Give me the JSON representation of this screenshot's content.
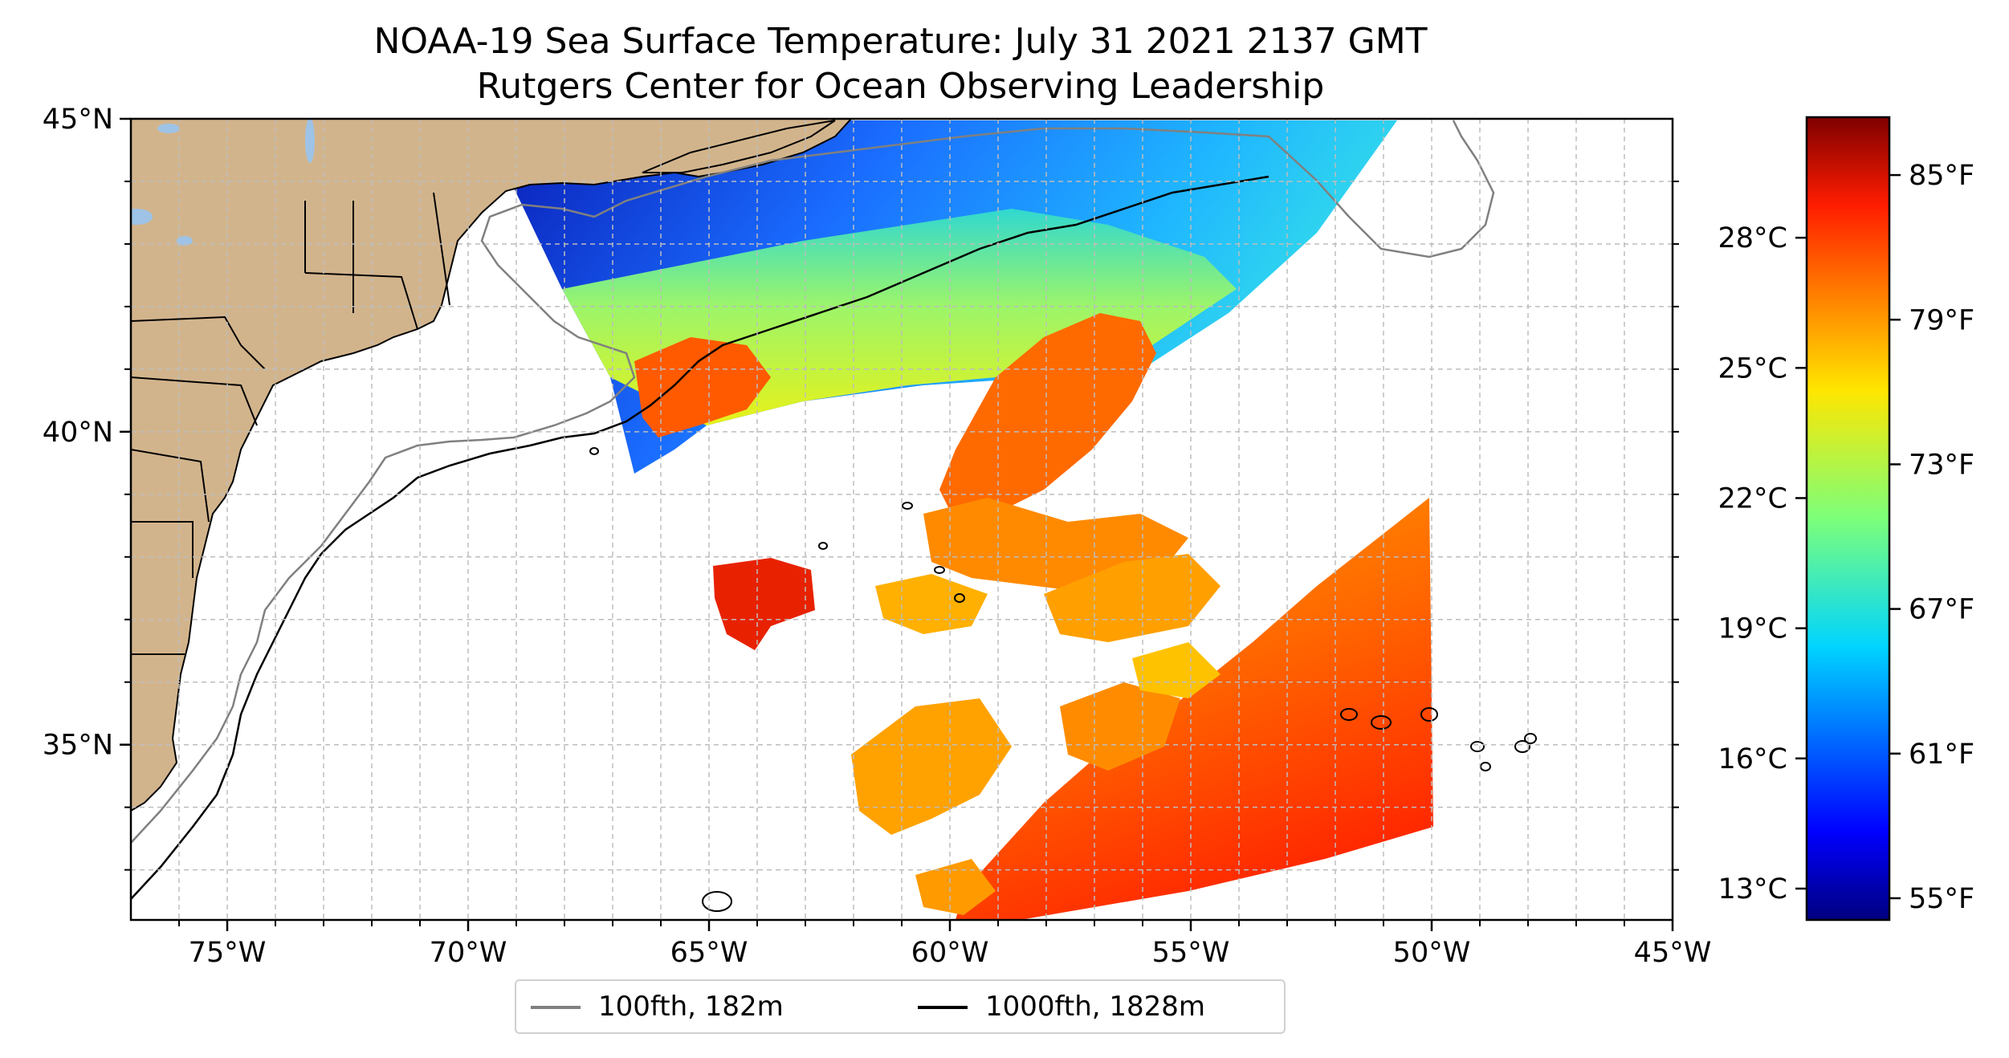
{
  "title": {
    "line1": "NOAA-19 Sea Surface Temperature: July 31 2021 2137 GMT",
    "line2": "Rutgers Center for Ocean Observing Leadership"
  },
  "map": {
    "lon_range": [
      -77,
      -45
    ],
    "lat_range": [
      32.2,
      45
    ],
    "x_ticks": [
      {
        "lon": -75,
        "label": "75°W"
      },
      {
        "lon": -70,
        "label": "70°W"
      },
      {
        "lon": -65,
        "label": "65°W"
      },
      {
        "lon": -60,
        "label": "60°W"
      },
      {
        "lon": -55,
        "label": "55°W"
      },
      {
        "lon": -50,
        "label": "50°W"
      },
      {
        "lon": -45,
        "label": "45°W"
      }
    ],
    "y_ticks": [
      {
        "lat": 45,
        "label": "45°N"
      },
      {
        "lat": 40,
        "label": "40°N"
      },
      {
        "lat": 35,
        "label": "35°N"
      }
    ],
    "grid": true,
    "colors": {
      "land": "#d2b48c",
      "lakes": "#9ec3e6",
      "isobath_100fth": "#808080",
      "isobath_1000fth": "#000000"
    }
  },
  "colorbar": {
    "colormap": "jet",
    "celsius_ticks": [
      "28°C",
      "25°C",
      "22°C",
      "19°C",
      "16°C",
      "13°C"
    ],
    "fahrenheit_ticks": [
      "85°F",
      "79°F",
      "73°F",
      "67°F",
      "61°F",
      "55°F"
    ]
  },
  "legend": {
    "items": [
      {
        "label": "100fth, 182m",
        "color": "#808080"
      },
      {
        "label": "1000fth, 1828m",
        "color": "#000000"
      }
    ]
  }
}
